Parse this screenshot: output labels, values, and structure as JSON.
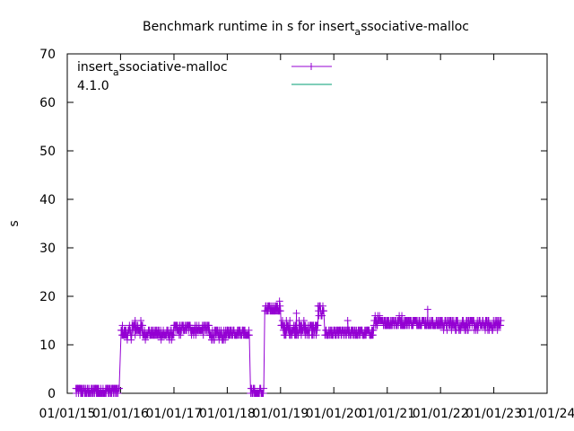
{
  "chart_data": {
    "type": "line",
    "title": "Benchmark runtime in s for insert",
    "title_sub": "a",
    "title_tail": "ssociative-malloc",
    "ylabel": "s",
    "xlabel": "",
    "ylim": [
      0,
      70
    ],
    "yticks": [
      0,
      10,
      20,
      30,
      40,
      50,
      60,
      70
    ],
    "xlim": [
      "2015-01-01",
      "2024-01-01"
    ],
    "xticks": [
      {
        "date": "2015-01-01",
        "label": "01/01/15"
      },
      {
        "date": "2016-01-01",
        "label": "01/01/16"
      },
      {
        "date": "2017-01-01",
        "label": "01/01/17"
      },
      {
        "date": "2018-01-01",
        "label": "01/01/18"
      },
      {
        "date": "2019-01-01",
        "label": "01/01/19"
      },
      {
        "date": "2020-01-01",
        "label": "01/01/20"
      },
      {
        "date": "2021-01-01",
        "label": "01/01/21"
      },
      {
        "date": "2022-01-01",
        "label": "01/01/22"
      },
      {
        "date": "2023-01-01",
        "label": "01/01/23"
      },
      {
        "date": "2024-01-01",
        "label": "01/01/24"
      }
    ],
    "grid": false,
    "legend_position": "top-left",
    "series": [
      {
        "name": "insert",
        "name_sub": "a",
        "name_tail": "ssociative-malloc",
        "color": "#9400d3",
        "marker": "plus",
        "segments": [
          {
            "start": "2015-03-01",
            "end": "2015-12-25",
            "level": 0.5,
            "noise": 0.7
          },
          {
            "start": "2016-01-05",
            "end": "2016-03-20",
            "level": 12.6,
            "noise": 1.2
          },
          {
            "start": "2016-03-20",
            "end": "2016-06-01",
            "level": 13.3,
            "noise": 1.3
          },
          {
            "start": "2016-06-01",
            "end": "2017-01-01",
            "level": 12.2,
            "noise": 0.8
          },
          {
            "start": "2017-01-01",
            "end": "2017-09-01",
            "level": 13.2,
            "noise": 0.9
          },
          {
            "start": "2017-09-01",
            "end": "2018-01-05",
            "level": 12.0,
            "noise": 1.0
          },
          {
            "start": "2018-01-05",
            "end": "2018-06-01",
            "level": 12.6,
            "noise": 0.8
          },
          {
            "start": "2018-06-10",
            "end": "2018-09-10",
            "level": 0.3,
            "noise": 0.6
          },
          {
            "start": "2018-09-15",
            "end": "2019-01-01",
            "level": 17.3,
            "noise": 0.8
          },
          {
            "start": "2019-01-05",
            "end": "2019-09-15",
            "level": 13.2,
            "noise": 1.6
          },
          {
            "start": "2019-09-15",
            "end": "2019-10-25",
            "level": 17.0,
            "noise": 1.0
          },
          {
            "start": "2019-11-01",
            "end": "2020-10-01",
            "level": 12.5,
            "noise": 0.9
          },
          {
            "start": "2020-10-01",
            "end": "2021-10-01",
            "level": 14.7,
            "noise": 1.0
          },
          {
            "start": "2021-10-01",
            "end": "2022-01-10",
            "level": 14.4,
            "noise": 0.8
          },
          {
            "start": "2022-01-10",
            "end": "2023-02-20",
            "level": 14.2,
            "noise": 1.0
          }
        ],
        "spikes": [
          {
            "date": "2016-04-10",
            "value": 15.0
          },
          {
            "date": "2018-12-25",
            "value": 19.0
          },
          {
            "date": "2019-04-20",
            "value": 16.5
          },
          {
            "date": "2021-10-05",
            "value": 17.3
          },
          {
            "date": "2020-04-05",
            "value": 15.0
          }
        ]
      },
      {
        "name": "4.1.0",
        "color": "#009e73",
        "marker": "none",
        "values": []
      }
    ]
  }
}
